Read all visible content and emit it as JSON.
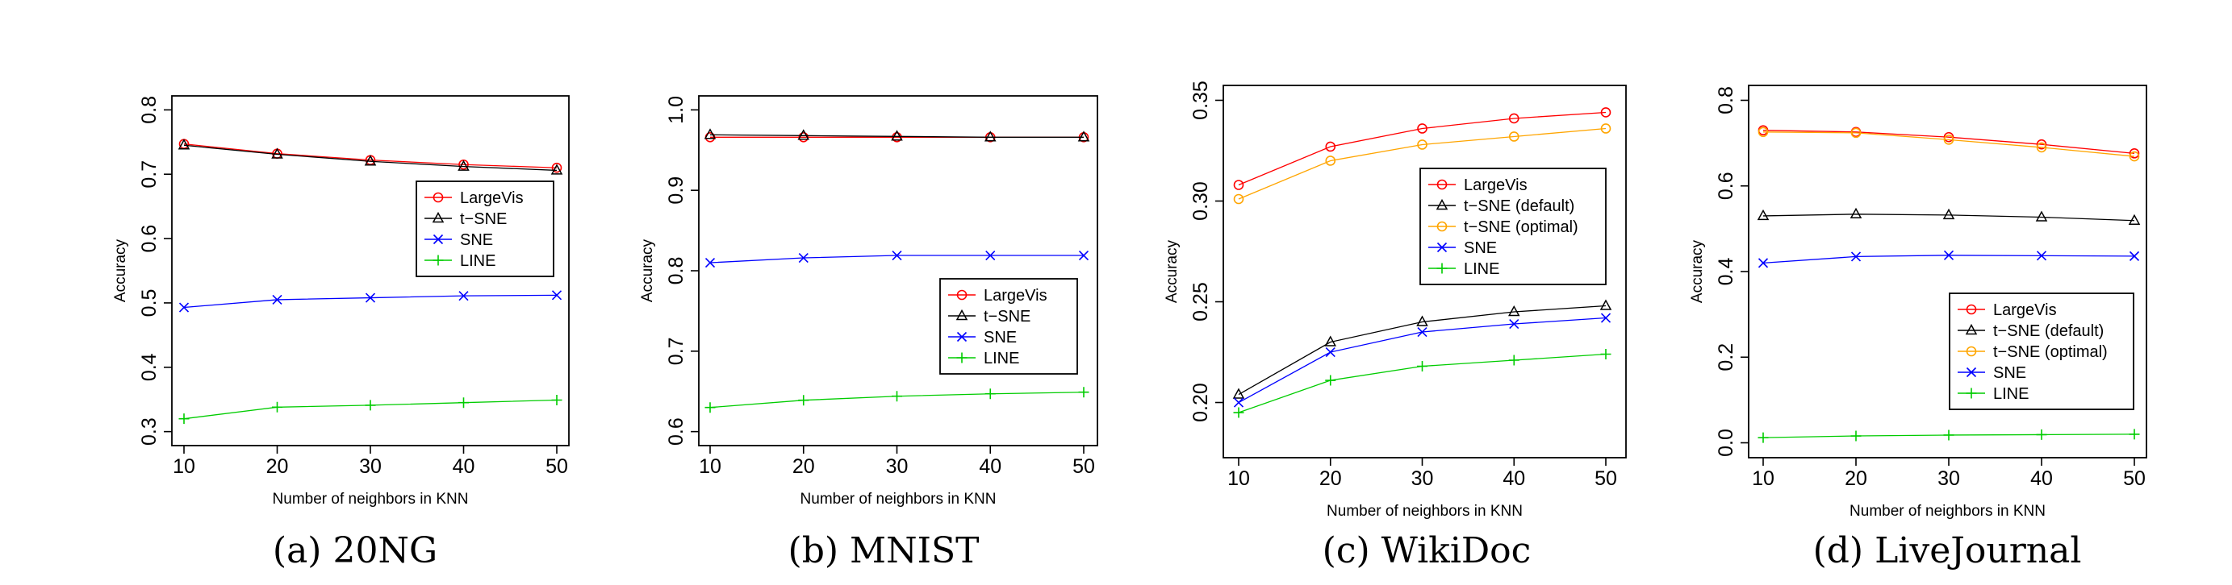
{
  "chart_data": [
    {
      "type": "line",
      "caption": "(a) 20NG",
      "xlabel": "Number of neighbors in KNN",
      "ylabel": "Accuracy",
      "x": [
        10,
        20,
        30,
        40,
        50
      ],
      "xlim": [
        10,
        50
      ],
      "ylim": [
        0.3,
        0.8
      ],
      "xticks": [
        "10",
        "20",
        "30",
        "40",
        "50"
      ],
      "yticks": [
        "0.3",
        "0.4",
        "0.5",
        "0.6",
        "0.7",
        "0.8"
      ],
      "legend_position": "right-middle",
      "series": [
        {
          "name": "LargeVis",
          "color": "#ff0000",
          "marker": "circle",
          "values": [
            0.747,
            0.732,
            0.722,
            0.715,
            0.71
          ]
        },
        {
          "name": "t−SNE",
          "color": "#000000",
          "marker": "triangle",
          "values": [
            0.745,
            0.731,
            0.72,
            0.712,
            0.706
          ]
        },
        {
          "name": "SNE",
          "color": "#0000ff",
          "marker": "x",
          "values": [
            0.493,
            0.505,
            0.508,
            0.511,
            0.512
          ]
        },
        {
          "name": "LINE",
          "color": "#00cc00",
          "marker": "plus",
          "values": [
            0.32,
            0.338,
            0.341,
            0.345,
            0.349
          ]
        }
      ]
    },
    {
      "type": "line",
      "caption": "(b) MNIST",
      "xlabel": "Number of neighbors in KNN",
      "ylabel": "Accuracy",
      "x": [
        10,
        20,
        30,
        40,
        50
      ],
      "xlim": [
        10,
        50
      ],
      "ylim": [
        0.6,
        1.0
      ],
      "xticks": [
        "10",
        "20",
        "30",
        "40",
        "50"
      ],
      "yticks": [
        "0.6",
        "0.7",
        "0.8",
        "0.9",
        "1.0"
      ],
      "legend_position": "right-middle",
      "series": [
        {
          "name": "LargeVis",
          "color": "#ff0000",
          "marker": "circle",
          "values": [
            0.966,
            0.966,
            0.966,
            0.966,
            0.966
          ]
        },
        {
          "name": "t−SNE",
          "color": "#000000",
          "marker": "triangle",
          "values": [
            0.969,
            0.968,
            0.967,
            0.966,
            0.966
          ]
        },
        {
          "name": "SNE",
          "color": "#0000ff",
          "marker": "x",
          "values": [
            0.81,
            0.816,
            0.819,
            0.819,
            0.819
          ]
        },
        {
          "name": "LINE",
          "color": "#00cc00",
          "marker": "plus",
          "values": [
            0.63,
            0.639,
            0.644,
            0.647,
            0.649
          ]
        }
      ]
    },
    {
      "type": "line",
      "caption": "(c) WikiDoc",
      "xlabel": "Number of neighbors in KNN",
      "ylabel": "Accuracy",
      "x": [
        10,
        20,
        30,
        40,
        50
      ],
      "xlim": [
        10,
        50
      ],
      "ylim": [
        0.18,
        0.35
      ],
      "xticks": [
        "10",
        "20",
        "30",
        "40",
        "50"
      ],
      "yticks": [
        "0.20",
        "0.25",
        "0.30",
        "0.35"
      ],
      "legend_position": "top-right",
      "series": [
        {
          "name": "LargeVis",
          "color": "#ff0000",
          "marker": "circle",
          "values": [
            0.308,
            0.327,
            0.336,
            0.341,
            0.344
          ]
        },
        {
          "name": "t−SNE (default)",
          "color": "#000000",
          "marker": "triangle",
          "values": [
            0.204,
            0.23,
            0.24,
            0.245,
            0.248
          ]
        },
        {
          "name": "t−SNE (optimal)",
          "color": "#ffa500",
          "marker": "circle",
          "values": [
            0.301,
            0.32,
            0.328,
            0.332,
            0.336
          ]
        },
        {
          "name": "SNE",
          "color": "#0000ff",
          "marker": "x",
          "values": [
            0.2,
            0.225,
            0.235,
            0.239,
            0.242
          ]
        },
        {
          "name": "LINE",
          "color": "#00cc00",
          "marker": "plus",
          "values": [
            0.195,
            0.211,
            0.218,
            0.221,
            0.224
          ]
        }
      ]
    },
    {
      "type": "line",
      "caption": "(d) LiveJournal",
      "xlabel": "Number of neighbors in KNN",
      "ylabel": "Accuracy",
      "x": [
        10,
        20,
        30,
        40,
        50
      ],
      "xlim": [
        10,
        50
      ],
      "ylim": [
        0.0,
        0.8
      ],
      "xticks": [
        "10",
        "20",
        "30",
        "40",
        "50"
      ],
      "yticks": [
        "0.0",
        "0.2",
        "0.4",
        "0.6",
        "0.8"
      ],
      "legend_position": "bottom-right",
      "series": [
        {
          "name": "LargeVis",
          "color": "#ff0000",
          "marker": "circle",
          "values": [
            0.73,
            0.726,
            0.714,
            0.697,
            0.676
          ]
        },
        {
          "name": "t−SNE (default)",
          "color": "#000000",
          "marker": "triangle",
          "values": [
            0.53,
            0.534,
            0.532,
            0.527,
            0.519
          ]
        },
        {
          "name": "t−SNE (optimal)",
          "color": "#ffa500",
          "marker": "circle",
          "values": [
            0.726,
            0.724,
            0.708,
            0.69,
            0.669
          ]
        },
        {
          "name": "SNE",
          "color": "#0000ff",
          "marker": "x",
          "values": [
            0.42,
            0.435,
            0.438,
            0.437,
            0.436
          ]
        },
        {
          "name": "LINE",
          "color": "#00cc00",
          "marker": "plus",
          "values": [
            0.012,
            0.016,
            0.018,
            0.019,
            0.02
          ]
        }
      ]
    }
  ]
}
